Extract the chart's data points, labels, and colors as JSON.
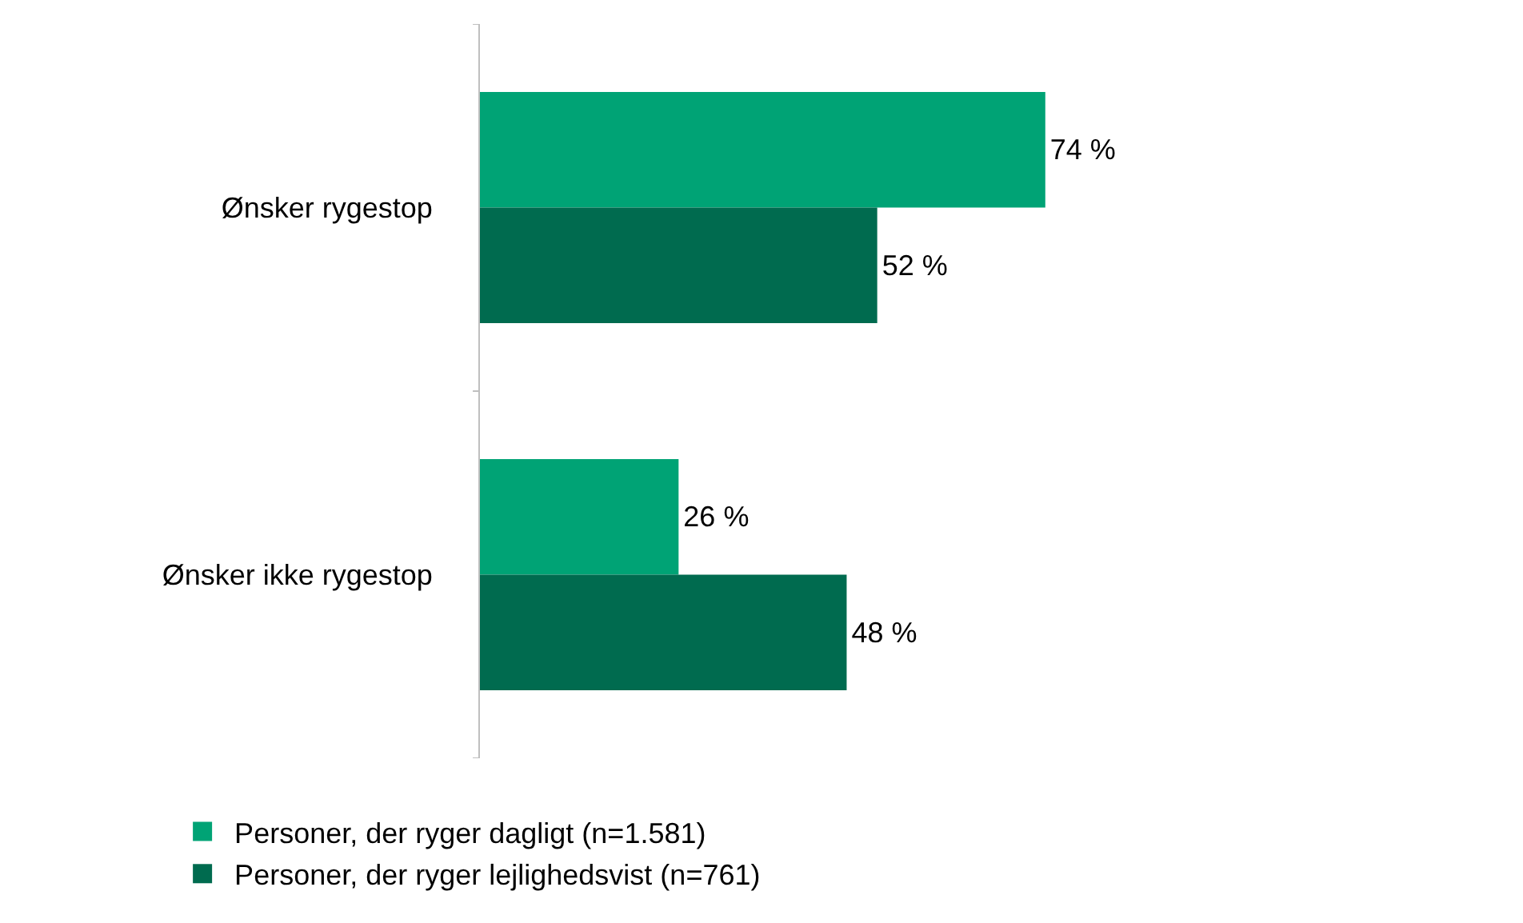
{
  "chart_data": {
    "type": "bar",
    "orientation": "horizontal",
    "categories": [
      "Ønsker rygestop",
      "Ønsker ikke rygestop"
    ],
    "series": [
      {
        "name": "Personer, der ryger dagligt (n=1.581)",
        "color": "#00a375",
        "values": [
          74,
          26
        ],
        "value_labels": [
          "74 %",
          "26 %"
        ]
      },
      {
        "name": "Personer, der ryger lejlighedsvist (n=761)",
        "color": "#006b4f",
        "values": [
          52,
          48
        ],
        "value_labels": [
          "52 %",
          "48 %"
        ]
      }
    ],
    "tick_labels": "y",
    "legend": "bottom"
  }
}
